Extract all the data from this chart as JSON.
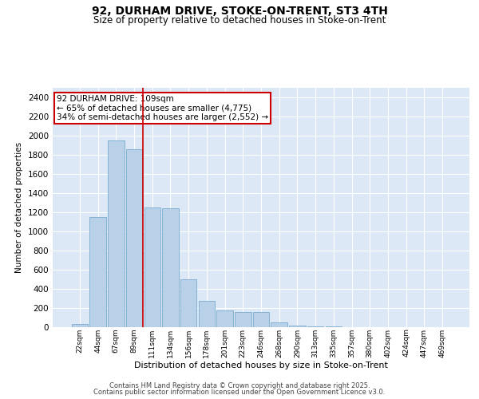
{
  "title1": "92, DURHAM DRIVE, STOKE-ON-TRENT, ST3 4TH",
  "title2": "Size of property relative to detached houses in Stoke-on-Trent",
  "xlabel": "Distribution of detached houses by size in Stoke-on-Trent",
  "ylabel": "Number of detached properties",
  "categories": [
    "22sqm",
    "44sqm",
    "67sqm",
    "89sqm",
    "111sqm",
    "134sqm",
    "156sqm",
    "178sqm",
    "201sqm",
    "223sqm",
    "246sqm",
    "268sqm",
    "290sqm",
    "313sqm",
    "335sqm",
    "357sqm",
    "380sqm",
    "402sqm",
    "424sqm",
    "447sqm",
    "469sqm"
  ],
  "values": [
    30,
    1150,
    1950,
    1860,
    1250,
    1240,
    500,
    275,
    175,
    155,
    155,
    50,
    20,
    8,
    5,
    4,
    4,
    4,
    4,
    4,
    4
  ],
  "bar_color": "#b8d0e8",
  "bar_edge_color": "#7aaacf",
  "vline_color": "#cc0000",
  "vline_pos": 3.5,
  "annotation_text": "92 DURHAM DRIVE: 109sqm\n← 65% of detached houses are smaller (4,775)\n34% of semi-detached houses are larger (2,552) →",
  "annotation_box_color": "#cc0000",
  "ylim": [
    0,
    2500
  ],
  "yticks": [
    0,
    200,
    400,
    600,
    800,
    1000,
    1200,
    1400,
    1600,
    1800,
    2000,
    2200,
    2400
  ],
  "background_color": "#dce8f5",
  "grid_color": "#ffffff",
  "footer1": "Contains HM Land Registry data © Crown copyright and database right 2025.",
  "footer2": "Contains public sector information licensed under the Open Government Licence v3.0."
}
